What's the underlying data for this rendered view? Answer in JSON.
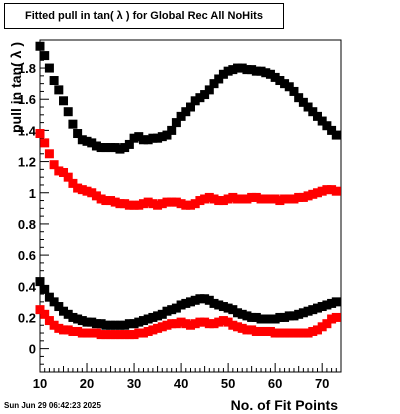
{
  "title": "Fitted pull in tan( λ ) for Global Rec All NoHits",
  "timestamp": "Sun Jun 29 06:42:23 2025",
  "chart_data": {
    "type": "scatter",
    "title": "Fitted pull in tan( λ ) for Global Rec All NoHits",
    "xlabel": "No. of Fit Points",
    "ylabel": "pull in tan( λ )",
    "xlim": [
      10,
      74
    ],
    "ylim": [
      -0.15,
      1.98
    ],
    "x_ticks": [
      10,
      20,
      30,
      40,
      50,
      60,
      70
    ],
    "x_tick_labels": [
      "10",
      "20",
      "30",
      "40",
      "50",
      "60",
      "70"
    ],
    "y_ticks": [
      0,
      0.2,
      0.4,
      0.6,
      0.8,
      1,
      1.2,
      1.4,
      1.6,
      1.8
    ],
    "y_tick_labels": [
      "0",
      "0.2",
      "0.4",
      "0.6",
      "0.8",
      "1",
      "1.2",
      "1.4",
      "1.6",
      "1.8"
    ],
    "grid": false,
    "series": [
      {
        "color": "#000000",
        "x": [
          10,
          11,
          12,
          13,
          14,
          15,
          16,
          17,
          18,
          19,
          20,
          21,
          22,
          23,
          24,
          25,
          26,
          27,
          28,
          29,
          30,
          31,
          32,
          33,
          34,
          35,
          36,
          37,
          38,
          39,
          40,
          41,
          42,
          43,
          44,
          45,
          46,
          47,
          48,
          49,
          50,
          51,
          52,
          53,
          54,
          55,
          56,
          57,
          58,
          59,
          60,
          61,
          62,
          63,
          64,
          65,
          66,
          67,
          68,
          69,
          70,
          71,
          72,
          73
        ],
        "values": [
          1.94,
          1.88,
          1.8,
          1.72,
          1.66,
          1.59,
          1.52,
          1.44,
          1.38,
          1.34,
          1.33,
          1.32,
          1.3,
          1.29,
          1.29,
          1.29,
          1.29,
          1.28,
          1.29,
          1.31,
          1.35,
          1.36,
          1.34,
          1.34,
          1.35,
          1.35,
          1.36,
          1.37,
          1.4,
          1.45,
          1.49,
          1.52,
          1.55,
          1.59,
          1.61,
          1.63,
          1.66,
          1.7,
          1.73,
          1.76,
          1.78,
          1.79,
          1.8,
          1.8,
          1.79,
          1.79,
          1.78,
          1.78,
          1.77,
          1.76,
          1.74,
          1.72,
          1.7,
          1.68,
          1.65,
          1.61,
          1.58,
          1.55,
          1.52,
          1.49,
          1.46,
          1.43,
          1.4,
          1.37
        ]
      },
      {
        "color": "#ff0000",
        "x": [
          10,
          11,
          12,
          13,
          14,
          15,
          16,
          17,
          18,
          19,
          20,
          21,
          22,
          23,
          24,
          25,
          26,
          27,
          28,
          29,
          30,
          31,
          32,
          33,
          34,
          35,
          36,
          37,
          38,
          39,
          40,
          41,
          42,
          43,
          44,
          45,
          46,
          47,
          48,
          49,
          50,
          51,
          52,
          53,
          54,
          55,
          56,
          57,
          58,
          59,
          60,
          61,
          62,
          63,
          64,
          65,
          66,
          67,
          68,
          69,
          70,
          71,
          72,
          73
        ],
        "values": [
          1.38,
          1.32,
          1.25,
          1.18,
          1.14,
          1.13,
          1.1,
          1.06,
          1.03,
          1.02,
          1.01,
          1.0,
          0.98,
          0.96,
          0.95,
          0.95,
          0.94,
          0.93,
          0.93,
          0.92,
          0.92,
          0.92,
          0.93,
          0.94,
          0.93,
          0.92,
          0.93,
          0.94,
          0.94,
          0.94,
          0.93,
          0.92,
          0.92,
          0.93,
          0.95,
          0.96,
          0.97,
          0.96,
          0.95,
          0.95,
          0.96,
          0.97,
          0.96,
          0.96,
          0.96,
          0.97,
          0.97,
          0.96,
          0.96,
          0.96,
          0.96,
          0.95,
          0.96,
          0.96,
          0.96,
          0.97,
          0.97,
          0.98,
          0.99,
          1.0,
          1.01,
          1.02,
          1.02,
          1.01
        ]
      },
      {
        "color": "#000000",
        "x": [
          10,
          11,
          12,
          13,
          14,
          15,
          16,
          17,
          18,
          19,
          20,
          21,
          22,
          23,
          24,
          25,
          26,
          27,
          28,
          29,
          30,
          31,
          32,
          33,
          34,
          35,
          36,
          37,
          38,
          39,
          40,
          41,
          42,
          43,
          44,
          45,
          46,
          47,
          48,
          49,
          50,
          51,
          52,
          53,
          54,
          55,
          56,
          57,
          58,
          59,
          60,
          61,
          62,
          63,
          64,
          65,
          66,
          67,
          68,
          69,
          70,
          71,
          72,
          73
        ],
        "values": [
          0.43,
          0.38,
          0.33,
          0.3,
          0.27,
          0.24,
          0.22,
          0.2,
          0.19,
          0.18,
          0.17,
          0.17,
          0.16,
          0.16,
          0.15,
          0.15,
          0.15,
          0.15,
          0.15,
          0.16,
          0.16,
          0.17,
          0.18,
          0.19,
          0.2,
          0.21,
          0.22,
          0.24,
          0.25,
          0.26,
          0.28,
          0.29,
          0.3,
          0.31,
          0.32,
          0.32,
          0.31,
          0.29,
          0.28,
          0.27,
          0.26,
          0.25,
          0.23,
          0.22,
          0.21,
          0.2,
          0.2,
          0.19,
          0.19,
          0.19,
          0.19,
          0.2,
          0.2,
          0.21,
          0.21,
          0.22,
          0.23,
          0.24,
          0.25,
          0.26,
          0.27,
          0.28,
          0.29,
          0.3
        ]
      },
      {
        "color": "#ff0000",
        "x": [
          10,
          11,
          12,
          13,
          14,
          15,
          16,
          17,
          18,
          19,
          20,
          21,
          22,
          23,
          24,
          25,
          26,
          27,
          28,
          29,
          30,
          31,
          32,
          33,
          34,
          35,
          36,
          37,
          38,
          39,
          40,
          41,
          42,
          43,
          44,
          45,
          46,
          47,
          48,
          49,
          50,
          51,
          52,
          53,
          54,
          55,
          56,
          57,
          58,
          59,
          60,
          61,
          62,
          63,
          64,
          65,
          66,
          67,
          68,
          69,
          70,
          71,
          72,
          73
        ],
        "values": [
          0.25,
          0.22,
          0.18,
          0.15,
          0.13,
          0.12,
          0.12,
          0.11,
          0.11,
          0.1,
          0.1,
          0.1,
          0.1,
          0.09,
          0.09,
          0.09,
          0.09,
          0.09,
          0.09,
          0.09,
          0.09,
          0.1,
          0.1,
          0.11,
          0.12,
          0.13,
          0.14,
          0.15,
          0.16,
          0.16,
          0.17,
          0.16,
          0.15,
          0.16,
          0.17,
          0.17,
          0.16,
          0.16,
          0.17,
          0.18,
          0.17,
          0.15,
          0.14,
          0.13,
          0.12,
          0.12,
          0.11,
          0.11,
          0.11,
          0.11,
          0.1,
          0.1,
          0.1,
          0.1,
          0.1,
          0.1,
          0.1,
          0.1,
          0.11,
          0.12,
          0.14,
          0.16,
          0.19,
          0.2
        ]
      }
    ]
  }
}
